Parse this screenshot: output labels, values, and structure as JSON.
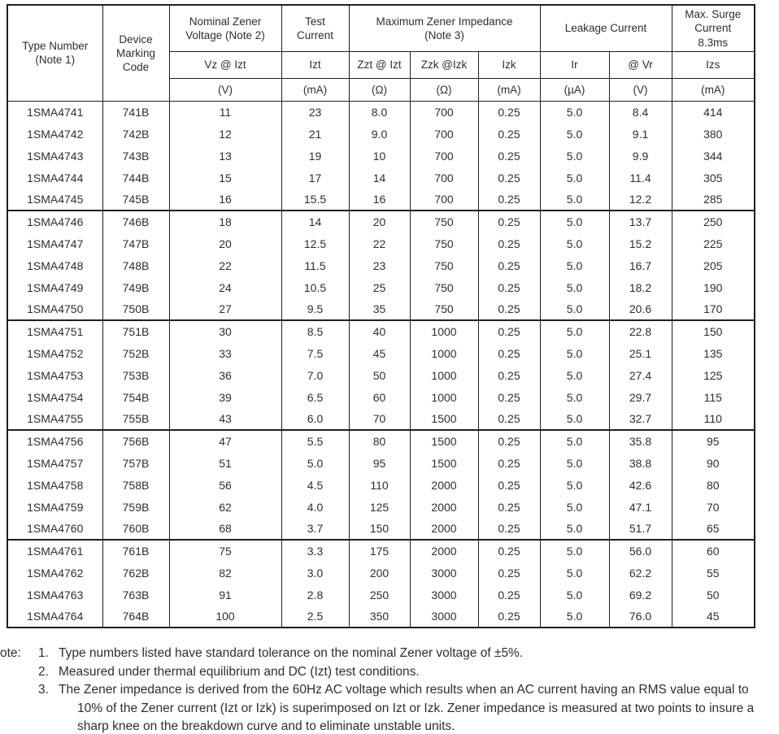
{
  "table": {
    "header": {
      "type_number": {
        "line1": "Type Number",
        "line2": "(Note 1)"
      },
      "device_marking": {
        "line1": "Device",
        "line2": "Marking",
        "line3": "Code"
      },
      "nominal_zener": {
        "line1": "Nominal Zener",
        "line2": "Voltage (Note 2)"
      },
      "test_current": {
        "line1": "Test",
        "line2": "Current"
      },
      "max_impedance": {
        "line1": "Maximum Zener Impedance",
        "line2": "(Note 3)"
      },
      "leakage_current": "Leakage Current",
      "max_surge": {
        "line1": "Max. Surge",
        "line2": "Current",
        "line3": "8.3ms"
      },
      "sub": [
        "Vz @ Izt",
        "Izt",
        "Zzt @ Izt",
        "Zzk @Izk",
        "Izk",
        "Ir",
        "@ Vr",
        "Izs"
      ],
      "units": [
        "(V)",
        "(mA)",
        "(Ω)",
        "(Ω)",
        "(mA)",
        "(µA)",
        "(V)",
        "(mA)"
      ]
    },
    "groups": [
      {
        "rows": [
          [
            "1SMA4741",
            "741B",
            "11",
            "23",
            "8.0",
            "700",
            "0.25",
            "5.0",
            "8.4",
            "414"
          ],
          [
            "1SMA4742",
            "742B",
            "12",
            "21",
            "9.0",
            "700",
            "0.25",
            "5.0",
            "9.1",
            "380"
          ],
          [
            "1SMA4743",
            "743B",
            "13",
            "19",
            "10",
            "700",
            "0.25",
            "5.0",
            "9.9",
            "344"
          ],
          [
            "1SMA4744",
            "744B",
            "15",
            "17",
            "14",
            "700",
            "0.25",
            "5.0",
            "11.4",
            "305"
          ],
          [
            "1SMA4745",
            "745B",
            "16",
            "15.5",
            "16",
            "700",
            "0.25",
            "5.0",
            "12.2",
            "285"
          ]
        ]
      },
      {
        "rows": [
          [
            "1SMA4746",
            "746B",
            "18",
            "14",
            "20",
            "750",
            "0.25",
            "5.0",
            "13.7",
            "250"
          ],
          [
            "1SMA4747",
            "747B",
            "20",
            "12.5",
            "22",
            "750",
            "0.25",
            "5.0",
            "15.2",
            "225"
          ],
          [
            "1SMA4748",
            "748B",
            "22",
            "11.5",
            "23",
            "750",
            "0.25",
            "5.0",
            "16.7",
            "205"
          ],
          [
            "1SMA4749",
            "749B",
            "24",
            "10.5",
            "25",
            "750",
            "0.25",
            "5.0",
            "18.2",
            "190"
          ],
          [
            "1SMA4750",
            "750B",
            "27",
            "9.5",
            "35",
            "750",
            "0.25",
            "5.0",
            "20.6",
            "170"
          ]
        ]
      },
      {
        "rows": [
          [
            "1SMA4751",
            "751B",
            "30",
            "8.5",
            "40",
            "1000",
            "0.25",
            "5.0",
            "22.8",
            "150"
          ],
          [
            "1SMA4752",
            "752B",
            "33",
            "7.5",
            "45",
            "1000",
            "0.25",
            "5.0",
            "25.1",
            "135"
          ],
          [
            "1SMA4753",
            "753B",
            "36",
            "7.0",
            "50",
            "1000",
            "0.25",
            "5.0",
            "27.4",
            "125"
          ],
          [
            "1SMA4754",
            "754B",
            "39",
            "6.5",
            "60",
            "1000",
            "0.25",
            "5.0",
            "29.7",
            "115"
          ],
          [
            "1SMA4755",
            "755B",
            "43",
            "6.0",
            "70",
            "1500",
            "0.25",
            "5.0",
            "32.7",
            "110"
          ]
        ]
      },
      {
        "rows": [
          [
            "1SMA4756",
            "756B",
            "47",
            "5.5",
            "80",
            "1500",
            "0.25",
            "5.0",
            "35.8",
            "95"
          ],
          [
            "1SMA4757",
            "757B",
            "51",
            "5.0",
            "95",
            "1500",
            "0.25",
            "5.0",
            "38.8",
            "90"
          ],
          [
            "1SMA4758",
            "758B",
            "56",
            "4.5",
            "110",
            "2000",
            "0.25",
            "5.0",
            "42.6",
            "80"
          ],
          [
            "1SMA4759",
            "759B",
            "62",
            "4.0",
            "125",
            "2000",
            "0.25",
            "5.0",
            "47.1",
            "70"
          ],
          [
            "1SMA4760",
            "760B",
            "68",
            "3.7",
            "150",
            "2000",
            "0.25",
            "5.0",
            "51.7",
            "65"
          ]
        ]
      },
      {
        "rows": [
          [
            "1SMA4761",
            "761B",
            "75",
            "3.3",
            "175",
            "2000",
            "0.25",
            "5.0",
            "56.0",
            "60"
          ],
          [
            "1SMA4762",
            "762B",
            "82",
            "3.0",
            "200",
            "3000",
            "0.25",
            "5.0",
            "62.2",
            "55"
          ],
          [
            "1SMA4763",
            "763B",
            "91",
            "2.8",
            "250",
            "3000",
            "0.25",
            "5.0",
            "69.2",
            "50"
          ],
          [
            "1SMA4764",
            "764B",
            "100",
            "2.5",
            "350",
            "3000",
            "0.25",
            "5.0",
            "76.0",
            "45"
          ]
        ]
      }
    ]
  },
  "notes": {
    "label": "ote:",
    "items": [
      {
        "num": "1.",
        "text": "Type numbers listed have standard tolerance on the nominal Zener voltage of ±5%."
      },
      {
        "num": "2.",
        "text": "Measured under thermal equilibrium and DC (Izt) test conditions."
      },
      {
        "num": "3.",
        "text": "The Zener impedance is derived from the 60Hz AC voltage which results when an AC current having an RMS value equal to 10% of the Zener current (Izt or Izk) is superimposed on Izt or Izk. Zener impedance is measured at two points to insure a sharp knee on the breakdown curve and to eliminate unstable units."
      }
    ]
  }
}
